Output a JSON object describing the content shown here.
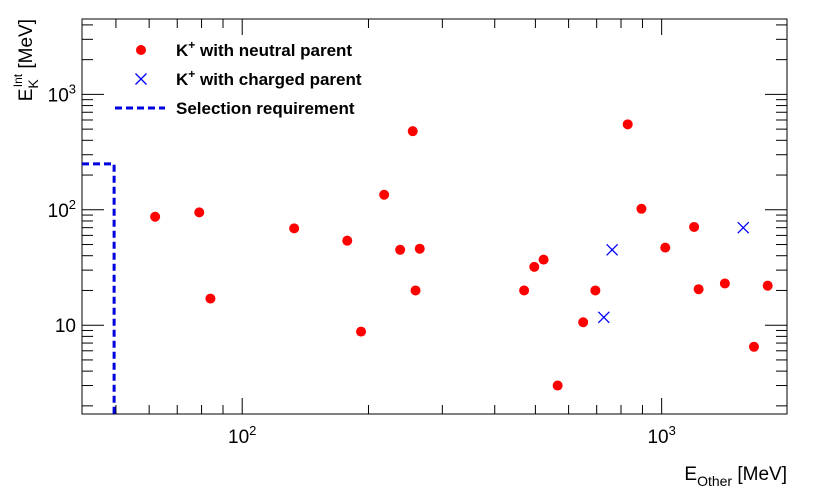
{
  "chart_data": {
    "type": "scatter",
    "xlabel": {
      "main": "E",
      "sub": "Other",
      "unit": " [MeV]"
    },
    "ylabel": {
      "main": "E",
      "sub": "K",
      "sup": "Int",
      "unit": " [MeV]"
    },
    "xscale": "log",
    "yscale": "log",
    "xlim": [
      41.5,
      1990
    ],
    "ylim": [
      1.7,
      4500
    ],
    "grid": false,
    "legend_position": "top-left",
    "x_tick_labels": [
      {
        "value": 100,
        "base": "10",
        "exp": "2"
      },
      {
        "value": 1000,
        "base": "10",
        "exp": "3"
      }
    ],
    "y_tick_labels": [
      {
        "value": 10,
        "base": "10",
        "exp": ""
      },
      {
        "value": 100,
        "base": "10",
        "exp": "2"
      },
      {
        "value": 1000,
        "base": "10",
        "exp": "3"
      }
    ],
    "series": [
      {
        "name": "K⁺ with neutral parent",
        "legend": {
          "main": "K",
          "sup": "+",
          "rest": " with neutral parent"
        },
        "marker": "circle",
        "color": "#ff0000",
        "points": [
          [
            62,
            87
          ],
          [
            79,
            95
          ],
          [
            84,
            17
          ],
          [
            133,
            69
          ],
          [
            178,
            54
          ],
          [
            192,
            8.8
          ],
          [
            218,
            135
          ],
          [
            238,
            45
          ],
          [
            255,
            480
          ],
          [
            259,
            20
          ],
          [
            265,
            46
          ],
          [
            470,
            20
          ],
          [
            497,
            32
          ],
          [
            523,
            37
          ],
          [
            565,
            3.0
          ],
          [
            650,
            10.6
          ],
          [
            695,
            20
          ],
          [
            830,
            550
          ],
          [
            895,
            102
          ],
          [
            1020,
            47
          ],
          [
            1195,
            71
          ],
          [
            1225,
            20.5
          ],
          [
            1415,
            23
          ],
          [
            1660,
            6.5
          ],
          [
            1790,
            22
          ]
        ]
      },
      {
        "name": "K⁺ with charged parent",
        "legend": {
          "main": "K",
          "sup": "+",
          "rest": " with charged parent"
        },
        "marker": "x",
        "color": "#0000ff",
        "points": [
          [
            728,
            11.7
          ],
          [
            762,
            45
          ],
          [
            1565,
            70
          ]
        ]
      },
      {
        "name": "Selection requirement",
        "legend": {
          "main": "Selection requirement",
          "sup": "",
          "rest": ""
        },
        "marker": "dashed-line",
        "color": "#0000dd",
        "line": [
          [
            41.5,
            250
          ],
          [
            49.5,
            250
          ],
          [
            49.5,
            1.7
          ]
        ]
      }
    ]
  }
}
